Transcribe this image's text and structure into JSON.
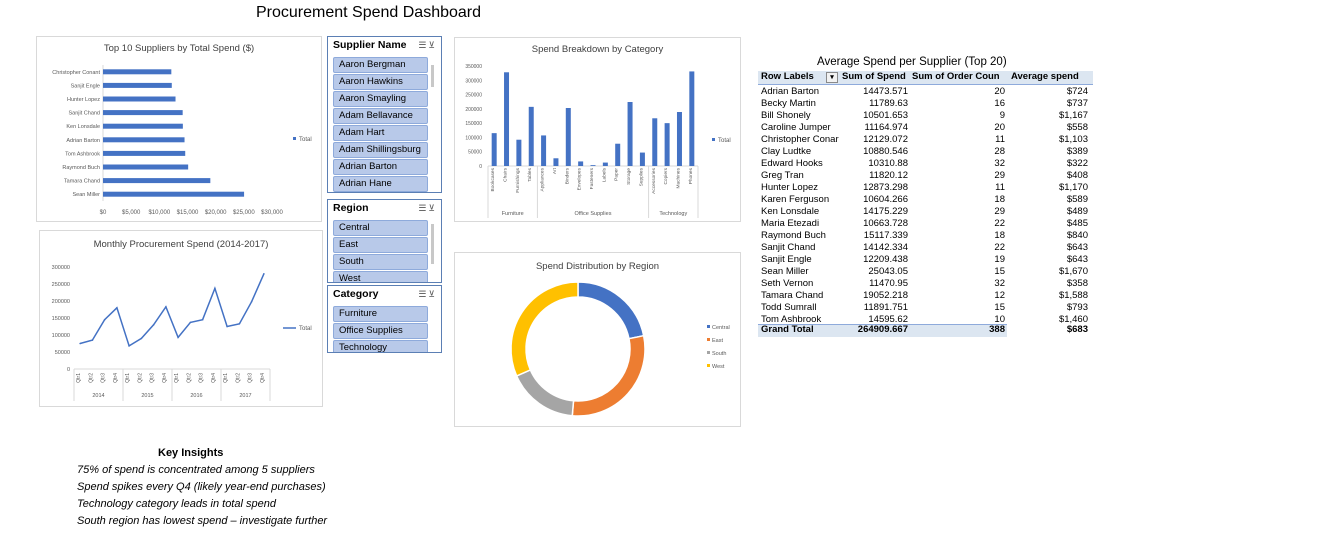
{
  "dashboard_title": "Procurement Spend Dashboard",
  "chart_data": [
    {
      "id": "top10",
      "type": "bar",
      "orientation": "horizontal",
      "title": "Top 10 Suppliers by Total Spend ($)",
      "categories": [
        "Sean Miller",
        "Tamara Chand",
        "Raymond Buch",
        "Tom Ashbrook",
        "Adrian Barton",
        "Ken Lonsdale",
        "Sanjit Chand",
        "Hunter Lopez",
        "Sanjit Engle",
        "Christopher Conant"
      ],
      "values": [
        25043.05,
        19052.218,
        15117.339,
        14595.62,
        14473.571,
        14175.229,
        14142.334,
        12873.298,
        12209.438,
        12129.072
      ],
      "xlim": [
        0,
        30000
      ],
      "ticks": [
        "$0",
        "$5,000",
        "$10,000",
        "$15,000",
        "$20,000",
        "$25,000",
        "$30,000"
      ],
      "legend": "Total",
      "color": "#4472c4"
    },
    {
      "id": "monthly",
      "type": "line",
      "title": "Monthly Procurement Spend  (2014-2017)",
      "categories": [
        "Qtr1",
        "Qtr2",
        "Qtr3",
        "Qtr4",
        "Qtr1",
        "Qtr2",
        "Qtr3",
        "Qtr4",
        "Qtr1",
        "Qtr2",
        "Qtr3",
        "Qtr4",
        "Qtr1",
        "Qtr2",
        "Qtr3",
        "Qtr4"
      ],
      "years": [
        "2014",
        "2015",
        "2016",
        "2017"
      ],
      "values": [
        75000,
        85000,
        145000,
        180000,
        68000,
        90000,
        130000,
        183000,
        93000,
        137000,
        145000,
        237000,
        125000,
        133000,
        198000,
        280000
      ],
      "ylim": [
        0,
        300000
      ],
      "yticks": [
        "0",
        "50000",
        "100000",
        "150000",
        "200000",
        "250000",
        "300000"
      ],
      "legend": "Total",
      "color": "#4472c4"
    },
    {
      "id": "category",
      "type": "bar",
      "title": "Spend Breakdown by Category",
      "groups": [
        {
          "name": "Furniture",
          "subs": [
            "Bookcases",
            "Chairs",
            "Furnishings",
            "Tables"
          ]
        },
        {
          "name": "Office Supplies",
          "subs": [
            "Appliances",
            "Art",
            "Binders",
            "Envelopes",
            "Fasteners",
            "Labels",
            "Paper",
            "Storage",
            "Supplies"
          ]
        },
        {
          "name": "Technology",
          "subs": [
            "Accessories",
            "Copiers",
            "Machines",
            "Phones"
          ]
        }
      ],
      "values": [
        115000,
        328000,
        92000,
        207000,
        107000,
        27000,
        203000,
        16000,
        3000,
        12000,
        78000,
        224000,
        47000,
        167000,
        150000,
        189000,
        331000
      ],
      "ylim": [
        0,
        350000
      ],
      "yticks": [
        "0",
        "50000",
        "100000",
        "150000",
        "200000",
        "250000",
        "300000",
        "350000"
      ],
      "legend": "Total",
      "color": "#4472c4"
    },
    {
      "id": "region",
      "type": "pie",
      "donut": true,
      "title": "Spend Distribution by Region",
      "categories": [
        "Central",
        "East",
        "South",
        "West"
      ],
      "values": [
        501240,
        678781,
        391722,
        725458
      ],
      "colors": [
        "#4472c4",
        "#ed7d31",
        "#a5a5a5",
        "#ffc000"
      ]
    }
  ],
  "slicers": {
    "supplier": {
      "title": "Supplier Name",
      "items": [
        "Aaron Bergman",
        "Aaron Hawkins",
        "Aaron Smayling",
        "Adam Bellavance",
        "Adam Hart",
        "Adam Shillingsburg",
        "Adrian Barton",
        "Adrian Hane"
      ]
    },
    "region": {
      "title": "Region",
      "items": [
        "Central",
        "East",
        "South",
        "West"
      ]
    },
    "category": {
      "title": "Category",
      "items": [
        "Furniture",
        "Office Supplies",
        "Technology"
      ]
    }
  },
  "pivot": {
    "title": "Average Spend per Supplier (Top 20)",
    "headers": [
      "Row Labels",
      "Sum of Spend",
      "Sum of Order Coun",
      "Average spend"
    ],
    "rows": [
      [
        "Adrian Barton",
        "14473.571",
        "20",
        "$724"
      ],
      [
        "Becky Martin",
        "11789.63",
        "16",
        "$737"
      ],
      [
        "Bill Shonely",
        "10501.653",
        "9",
        "$1,167"
      ],
      [
        "Caroline Jumper",
        "11164.974",
        "20",
        "$558"
      ],
      [
        "Christopher Conar",
        "12129.072",
        "11",
        "$1,103"
      ],
      [
        "Clay Ludtke",
        "10880.546",
        "28",
        "$389"
      ],
      [
        "Edward Hooks",
        "10310.88",
        "32",
        "$322"
      ],
      [
        "Greg Tran",
        "11820.12",
        "29",
        "$408"
      ],
      [
        "Hunter Lopez",
        "12873.298",
        "11",
        "$1,170"
      ],
      [
        "Karen Ferguson",
        "10604.266",
        "18",
        "$589"
      ],
      [
        "Ken Lonsdale",
        "14175.229",
        "29",
        "$489"
      ],
      [
        "Maria Etezadi",
        "10663.728",
        "22",
        "$485"
      ],
      [
        "Raymond Buch",
        "15117.339",
        "18",
        "$840"
      ],
      [
        "Sanjit Chand",
        "14142.334",
        "22",
        "$643"
      ],
      [
        "Sanjit Engle",
        "12209.438",
        "19",
        "$643"
      ],
      [
        "Sean Miller",
        "25043.05",
        "15",
        "$1,670"
      ],
      [
        "Seth Vernon",
        "11470.95",
        "32",
        "$358"
      ],
      [
        "Tamara Chand",
        "19052.218",
        "12",
        "$1,588"
      ],
      [
        "Todd Sumrall",
        "11891.751",
        "15",
        "$793"
      ],
      [
        "Tom Ashbrook",
        "14595.62",
        "10",
        "$1,460"
      ]
    ],
    "total": [
      "Grand Total",
      "264909.667",
      "388",
      "$683"
    ]
  },
  "insights": {
    "title": "Key Insights",
    "lines": [
      "75% of spend is concentrated among 5 suppliers",
      "Spend spikes every Q4 (likely year-end purchases)",
      "Technology category leads in total spend",
      "South region has lowest spend – investigate further"
    ]
  }
}
